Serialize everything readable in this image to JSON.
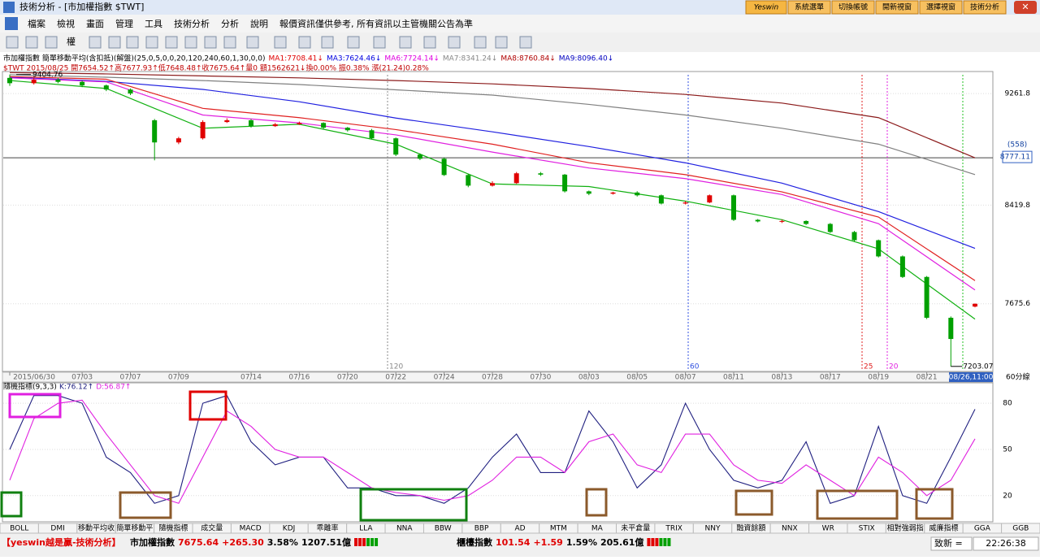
{
  "window": {
    "title": "技術分析 - [市加權指數 $TWT]",
    "brand": "Yeswin",
    "buttons": [
      "系統選單",
      "切換帳號",
      "開新視窗",
      "選擇視窗",
      "技術分析"
    ]
  },
  "menu": [
    "檔案",
    "檢視",
    "畫面",
    "管理",
    "工具",
    "技術分析",
    "分析",
    "說明",
    "報價資訊僅供參考, 所有資訊以主管機關公告為準"
  ],
  "toolbar": {
    "label": "權"
  },
  "info": {
    "line1": "市加權指數 簡單移動平均(含扣抵)(解盤)(25,0,5,0,0,20,120,240,60,1,30,0,0)",
    "ma": [
      {
        "text": "MA1:7708.41↓",
        "color": "#e00000"
      },
      {
        "text": "MA3:7624.46↓",
        "color": "#0000e0"
      },
      {
        "text": "MA6:7724.14↓",
        "color": "#e000e0"
      },
      {
        "text": "MA7:8341.24↓",
        "color": "#888888"
      },
      {
        "text": "MA8:8760.84↓",
        "color": "#b00000"
      },
      {
        "text": "MA9:8096.40↓",
        "color": "#0000c0"
      }
    ],
    "line2": "$TWT 2015/08/25 開7654.52↑高7677.93↑低7648.48↑收7675.64↑量0 額1562621↓換0.00% 振0.38% 漲(21.24)0.28%"
  },
  "chart_data": [
    {
      "type": "candlestick",
      "ylim": [
        7165,
        9428
      ],
      "yticks": [
        9261.8,
        8419.8,
        7675.6
      ],
      "open": [
        9380,
        9340,
        9366,
        9350,
        9323,
        9292,
        9060,
        8893,
        8924,
        9047,
        9060,
        9016,
        9030,
        9040,
        9004,
        8985,
        8924,
        8801,
        8770,
        8647,
        8567,
        8586,
        8660,
        8650,
        8524,
        8506,
        8515,
        8494,
        8432,
        8440,
        8494,
        8309,
        8297,
        8300,
        8278,
        8217,
        8155,
        8033,
        7878,
        7570,
        7654.52
      ],
      "high": [
        9404.76,
        9380,
        9380,
        9360,
        9330,
        9300,
        9070,
        8935,
        9060,
        9075,
        9070,
        9040,
        9050,
        9045,
        9010,
        8995,
        8930,
        8810,
        8780,
        8655,
        8600,
        8670,
        8670,
        8655,
        8530,
        8520,
        8525,
        8500,
        8450,
        8500,
        8500,
        8315,
        8310,
        8305,
        8285,
        8225,
        8160,
        8040,
        7885,
        7580,
        7677.93
      ],
      "low": [
        9320,
        9330,
        9340,
        9310,
        9280,
        9250,
        8758,
        8880,
        8915,
        9040,
        9005,
        9010,
        9025,
        8995,
        8975,
        8915,
        8790,
        8760,
        8640,
        8555,
        8560,
        8580,
        8640,
        8515,
        8495,
        8500,
        8485,
        8425,
        8425,
        8435,
        8300,
        8290,
        8285,
        8270,
        8210,
        8145,
        8025,
        7870,
        7560,
        7203.07,
        7648.48
      ],
      "close": [
        9340,
        9366,
        9350,
        9323,
        9292,
        9262,
        8893,
        8924,
        9047,
        9060,
        9016,
        9030,
        9040,
        9004,
        8985,
        8924,
        8801,
        8770,
        8647,
        8567,
        8586,
        8660,
        8650,
        8524,
        8506,
        8515,
        8494,
        8432,
        8440,
        8494,
        8309,
        8297,
        8300,
        8278,
        8217,
        8155,
        8033,
        7878,
        7570,
        7410,
        7675.64
      ],
      "ma_x": [
        0,
        4,
        8,
        12,
        16,
        20,
        24,
        28,
        32,
        36,
        40
      ],
      "series": [
        {
          "color": "#808080",
          "values": [
            9404,
            9385,
            9360,
            9330,
            9290,
            9250,
            9180,
            9100,
            9000,
            8880,
            8650
          ]
        },
        {
          "color": "#8b1a1a",
          "values": [
            9420,
            9410,
            9395,
            9380,
            9360,
            9335,
            9300,
            9255,
            9190,
            9080,
            8777
          ]
        },
        {
          "color": "#2020e0",
          "values": [
            9385,
            9354,
            9293,
            9200,
            9077,
            8973,
            8862,
            8739,
            8586,
            8371,
            8094
          ]
        },
        {
          "color": "#e02020",
          "values": [
            9390,
            9370,
            9150,
            9080,
            8990,
            8880,
            8740,
            8650,
            8520,
            8330,
            7850
          ]
        },
        {
          "color": "#e020e0",
          "values": [
            9380,
            9350,
            9100,
            9040,
            8950,
            8820,
            8700,
            8620,
            8500,
            8280,
            7780
          ]
        },
        {
          "color": "#10b010",
          "values": [
            9360,
            9300,
            9000,
            9030,
            8880,
            8580,
            8560,
            8450,
            8310,
            8090,
            7560
          ]
        }
      ],
      "crosshair": 8777.11,
      "crosshair_label": "(558)",
      "markers": [
        "120",
        "60",
        "25",
        "20"
      ],
      "xticks": [
        {
          "value": 0,
          "label": "2015/06/30"
        },
        {
          "value": 3,
          "label": "07/03"
        },
        {
          "value": 5,
          "label": "07/07"
        },
        {
          "value": 7,
          "label": "07/09"
        },
        {
          "value": 10,
          "label": "07/14"
        },
        {
          "value": 12,
          "label": "07/16"
        },
        {
          "value": 14,
          "label": "07/20"
        },
        {
          "value": 16,
          "label": "07/22"
        },
        {
          "value": 18,
          "label": "07/24"
        },
        {
          "value": 20,
          "label": "07/28"
        },
        {
          "value": 22,
          "label": "07/30"
        },
        {
          "value": 24,
          "label": "08/03"
        },
        {
          "value": 26,
          "label": "08/05"
        },
        {
          "value": 28,
          "label": "08/07"
        },
        {
          "value": 30,
          "label": "08/11"
        },
        {
          "value": 32,
          "label": "08/13"
        },
        {
          "value": 34,
          "label": "08/17"
        },
        {
          "value": 36,
          "label": "08/19"
        },
        {
          "value": 38,
          "label": "08/21"
        }
      ],
      "cursor_label": "08/26,11:00",
      "period": "60分線"
    },
    {
      "type": "line",
      "title": "隨機指標(9,3,3)",
      "ylim": [
        3,
        88
      ],
      "yticks": [
        80,
        50,
        20
      ],
      "series": [
        {
          "name": "K:76.12↑",
          "color": "#202080",
          "values": [
            50,
            85,
            85,
            80,
            45,
            35,
            15,
            20,
            80,
            85,
            55,
            40,
            45,
            45,
            25,
            25,
            20,
            20,
            15,
            25,
            45,
            60,
            35,
            35,
            75,
            55,
            25,
            40,
            80,
            50,
            30,
            25,
            30,
            55,
            15,
            20,
            65,
            20,
            15,
            45,
            76.12
          ]
        },
        {
          "name": "D:56.87↑",
          "color": "#e020e0",
          "values": [
            30,
            70,
            80,
            82,
            60,
            40,
            20,
            15,
            45,
            75,
            65,
            50,
            45,
            45,
            35,
            25,
            22,
            20,
            17,
            20,
            30,
            45,
            45,
            35,
            55,
            60,
            40,
            35,
            60,
            60,
            40,
            30,
            28,
            40,
            30,
            20,
            45,
            35,
            20,
            30,
            56.87
          ]
        }
      ]
    }
  ],
  "tabs": [
    "BOLL",
    "DMI",
    "移動平均收",
    "簡單移動平",
    "隨機指標",
    "成交量",
    "MACD",
    "KDJ",
    "乖離率",
    "LLA",
    "NNA",
    "BBW",
    "BBP",
    "AD",
    "MTM",
    "MA",
    "未平倉量",
    "TRIX",
    "NNY",
    "融資餘額",
    "NNX",
    "WR",
    "STIX",
    "相對強弱指",
    "威廉指標",
    "GGA",
    "GGB"
  ],
  "status": {
    "brand": "【yeswin越是贏-技術分析】",
    "index1": {
      "name": "市加權指數",
      "price": "7675.64",
      "change": "+265.30",
      "pct": "3.58%",
      "amount": "1207.51億"
    },
    "index2": {
      "name": "櫃檯指數",
      "price": "101.54",
      "change": "+1.59",
      "pct": "1.59%",
      "amount": "205.61億"
    },
    "stock": "致新 =",
    "time": "22:26:38"
  }
}
